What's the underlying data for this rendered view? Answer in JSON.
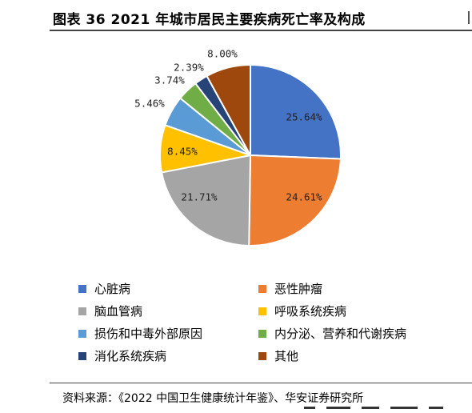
{
  "header": {
    "title": "图表 36 2021 年城市居民主要疾病死亡率及构成"
  },
  "chart_data": {
    "type": "pie",
    "title": "",
    "labels": [
      "心脏病",
      "恶性肿瘤",
      "脑血管病",
      "呼吸系统疾病",
      "损伤和中毒外部原因",
      "内分泌、营养和代谢疾病",
      "消化系统疾病",
      "其他"
    ],
    "values": [
      25.64,
      24.61,
      21.71,
      8.45,
      5.46,
      3.74,
      2.39,
      8.0
    ],
    "value_labels": [
      "25.64%",
      "24.61%",
      "21.71%",
      "8.45%",
      "5.46%",
      "3.74%",
      "2.39%",
      "8.00%"
    ],
    "colors": [
      "#4472C4",
      "#ED7D31",
      "#A5A5A5",
      "#FFC000",
      "#5B9BD5",
      "#70AD47",
      "#264478",
      "#9E480E"
    ],
    "start_angle_deg": 0,
    "direction": "clockwise",
    "legend_position": "bottom"
  },
  "footer": {
    "source": "资料来源：《2022 中国卫生健康统计年鉴》、华安证券研究所"
  }
}
